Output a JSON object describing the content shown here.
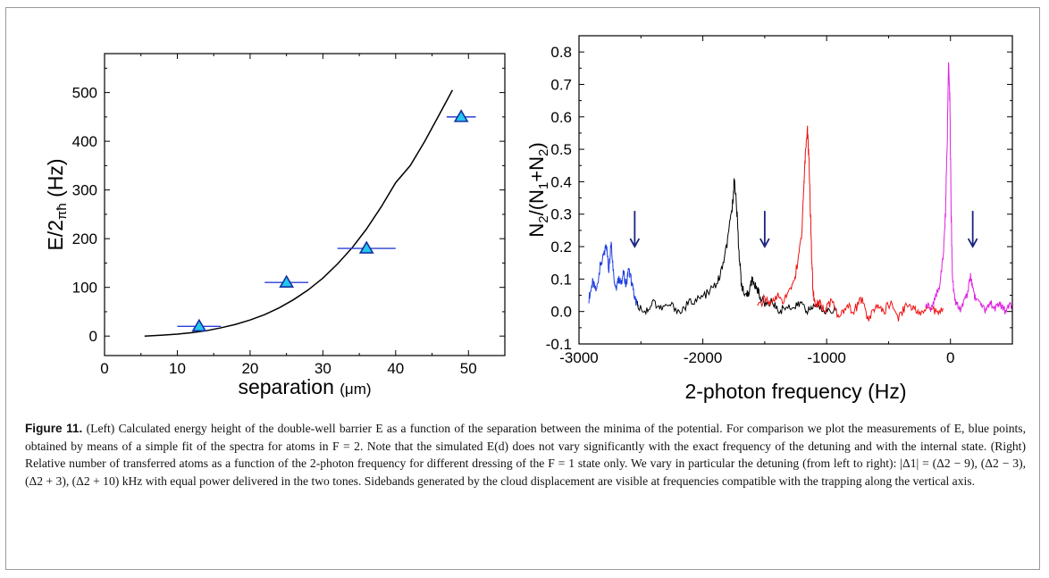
{
  "figure": {
    "caption": {
      "label": "Figure 11.",
      "text": "(Left) Calculated energy height of the double-well barrier E as a function of the separation between the minima of the potential. For comparison we plot the measurements of E, blue points, obtained by means of a simple fit of the spectra for atoms in F = 2. Note that the simulated E(d) does not vary significantly with the exact frequency of the detuning and with the internal state. (Right) Relative number of transferred atoms as a function of the 2-photon frequency for different dressing of the F = 1 state only. We vary in particular the detuning (from left to right): |Δ1| = (Δ2 − 9), (Δ2 − 3), (Δ2 + 3), (Δ2 + 10) kHz with equal power delivered in the two tones. Sidebands generated by the cloud displacement are visible at frequencies compatible with the trapping along the vertical axis."
    }
  },
  "colors": {
    "marker_fill": "#22c8ee",
    "marker_edge": "#1530a0",
    "error_bar": "#2a3fd6",
    "fit_curve": "#000000",
    "arrow": "#1a237e",
    "series_blue": "#1f3fe0",
    "series_black": "#000000",
    "series_red": "#ee1111",
    "series_magenta": "#e020e0"
  },
  "chart_data": [
    {
      "type": "scatter",
      "xlabel_main": "separation",
      "xlabel_unit": "(μm)",
      "ylabel_main": "E/2",
      "ylabel_sub": "πħ",
      "ylabel_unit": "(Hz)",
      "xlim": [
        0,
        55
      ],
      "ylim": [
        -40,
        580
      ],
      "xticks": [
        0,
        10,
        20,
        30,
        40,
        50
      ],
      "yticks": [
        0,
        100,
        200,
        300,
        400,
        500
      ],
      "points": [
        {
          "x": 13,
          "y": 20,
          "xerr": 3
        },
        {
          "x": 25,
          "y": 110,
          "xerr": 3
        },
        {
          "x": 36,
          "y": 180,
          "xerr": 4
        },
        {
          "x": 49,
          "y": 450,
          "xerr": 2
        }
      ],
      "fit_curve": {
        "x": [
          5.5,
          8,
          10,
          12,
          14,
          16,
          18,
          20,
          22,
          24,
          26,
          28,
          30,
          32,
          34,
          36,
          38,
          40,
          42,
          44,
          46,
          47.8
        ],
        "y": [
          0,
          2,
          4,
          7,
          11,
          17,
          24,
          33,
          44,
          58,
          75,
          95,
          119,
          148,
          181,
          220,
          265,
          315,
          350,
          400,
          455,
          505
        ]
      }
    },
    {
      "type": "line",
      "xlabel": "2-photon frequency (Hz)",
      "ylabel_parts": [
        "N",
        "2",
        "/(N",
        "1",
        "+N",
        "2",
        ")"
      ],
      "xlim": [
        -3000,
        500
      ],
      "ylim": [
        -0.1,
        0.85
      ],
      "xticks": [
        -3000,
        -2000,
        -1000,
        0
      ],
      "yticks": [
        -0.1,
        0.0,
        0.1,
        0.2,
        0.3,
        0.4,
        0.5,
        0.6,
        0.7,
        0.8
      ],
      "ytick_labels": [
        "-0.1",
        "0.0",
        "0.1",
        "0.2",
        "0.3",
        "0.4",
        "0.5",
        "0.6",
        "0.7",
        "0.8"
      ],
      "arrows": [
        {
          "x": -2550,
          "y_top": 0.31,
          "y_bottom": 0.2
        },
        {
          "x": -1500,
          "y_top": 0.31,
          "y_bottom": 0.2
        },
        {
          "x": 180,
          "y_top": 0.31,
          "y_bottom": 0.2
        }
      ],
      "series": [
        {
          "color_key": "series_blue",
          "x": [
            -2920,
            -2890,
            -2860,
            -2830,
            -2800,
            -2780,
            -2760,
            -2740,
            -2720,
            -2700,
            -2680,
            -2660,
            -2640,
            -2620,
            -2600,
            -2580,
            -2560,
            -2540,
            -2520
          ],
          "y": [
            0.04,
            0.09,
            0.06,
            0.14,
            0.17,
            0.21,
            0.13,
            0.22,
            0.11,
            0.07,
            0.1,
            0.09,
            0.12,
            0.08,
            0.13,
            0.1,
            0.06,
            0.03,
            0.02
          ]
        },
        {
          "color_key": "series_black",
          "x": [
            -2530,
            -2460,
            -2400,
            -2340,
            -2260,
            -2180,
            -2100,
            -2020,
            -1950,
            -1880,
            -1830,
            -1790,
            -1760,
            -1745,
            -1730,
            -1710,
            -1690,
            -1660,
            -1630,
            -1600,
            -1580,
            -1560,
            -1540,
            -1500,
            -1440,
            -1380,
            -1320,
            -1260,
            -1200,
            -1150,
            -1100,
            -1040,
            -980,
            -920
          ],
          "y": [
            0.02,
            0.0,
            0.03,
            0.01,
            0.02,
            0.0,
            0.03,
            0.04,
            0.06,
            0.09,
            0.15,
            0.24,
            0.33,
            0.41,
            0.34,
            0.2,
            0.09,
            0.04,
            0.06,
            0.1,
            0.08,
            0.07,
            0.05,
            0.02,
            0.03,
            0.0,
            0.02,
            0.01,
            0.03,
            0.0,
            0.02,
            0.01,
            0.0,
            0.01
          ]
        },
        {
          "color_key": "series_red",
          "x": [
            -1560,
            -1500,
            -1450,
            -1400,
            -1350,
            -1300,
            -1260,
            -1230,
            -1200,
            -1185,
            -1170,
            -1155,
            -1140,
            -1125,
            -1110,
            -1090,
            -1060,
            -1020,
            -960,
            -900,
            -840,
            -780,
            -720,
            -660,
            -600,
            -540,
            -480,
            -420,
            -360,
            -300,
            -240,
            -180,
            -120,
            -60
          ],
          "y": [
            0.01,
            0.04,
            0.02,
            0.05,
            0.03,
            0.06,
            0.1,
            0.16,
            0.25,
            0.38,
            0.5,
            0.56,
            0.44,
            0.22,
            0.06,
            0.02,
            0.03,
            0.0,
            0.03,
            -0.02,
            0.02,
            0.0,
            0.04,
            -0.03,
            0.02,
            0.0,
            0.03,
            -0.02,
            0.02,
            0.01,
            -0.01,
            0.02,
            0.0,
            0.01
          ]
        },
        {
          "color_key": "series_magenta",
          "x": [
            -200,
            -160,
            -120,
            -90,
            -60,
            -40,
            -25,
            -15,
            -5,
            5,
            15,
            30,
            50,
            80,
            110,
            140,
            160,
            180,
            200,
            240,
            280,
            320,
            360,
            400,
            440,
            480,
            500
          ],
          "y": [
            0.02,
            0.01,
            0.04,
            0.08,
            0.16,
            0.3,
            0.55,
            0.77,
            0.65,
            0.32,
            0.12,
            0.05,
            0.02,
            0.01,
            0.03,
            0.06,
            0.11,
            0.08,
            0.04,
            0.02,
            0.0,
            0.03,
            0.01,
            0.02,
            0.0,
            0.03,
            0.01
          ]
        }
      ]
    }
  ]
}
